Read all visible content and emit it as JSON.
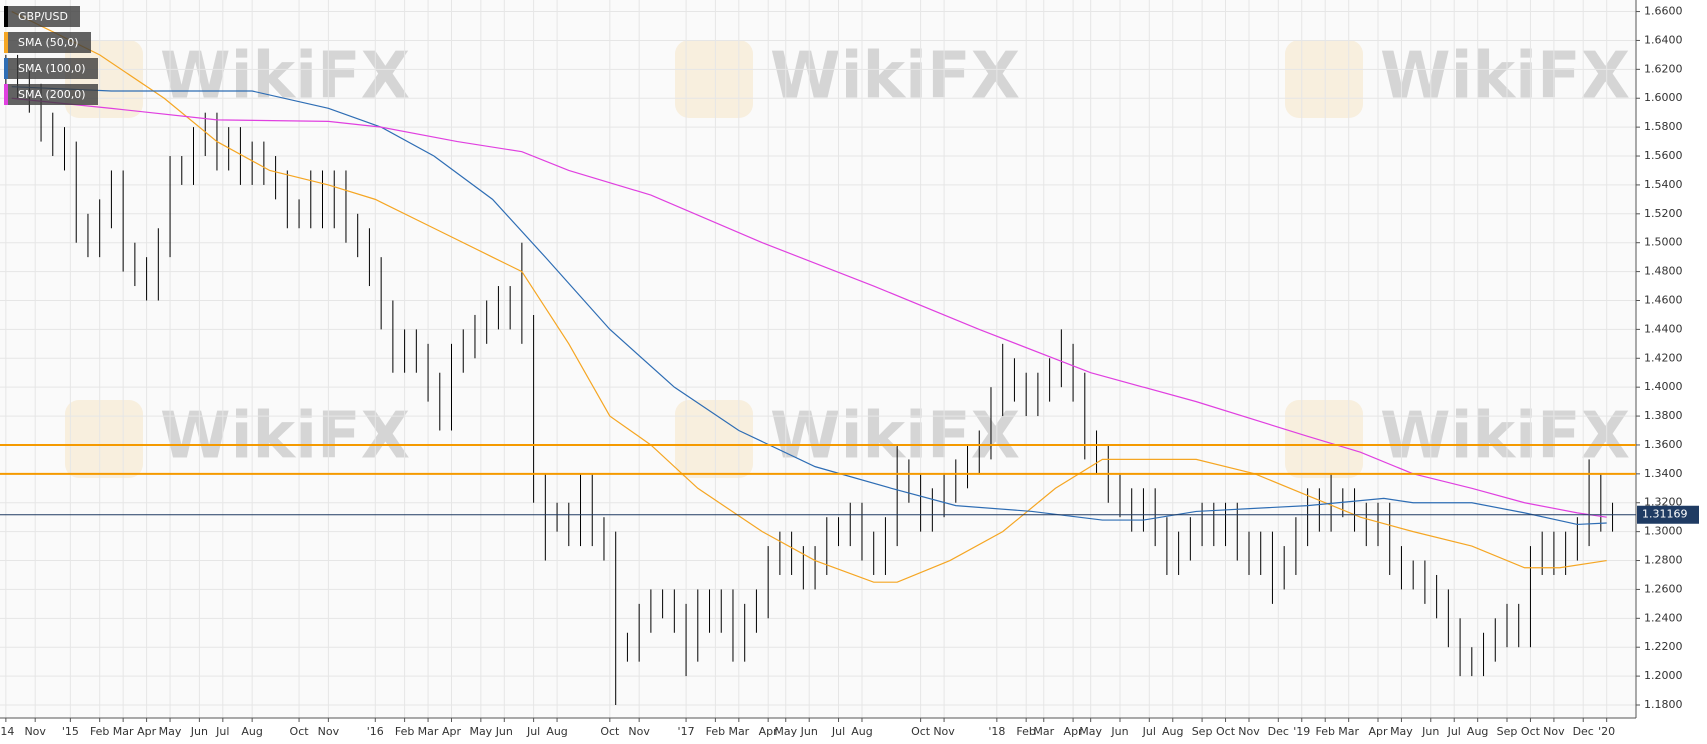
{
  "chart_data": {
    "type": "candlestick",
    "watermark": "WikiFX",
    "xlim": [
      0,
      279
    ],
    "ylim": [
      1.171,
      1.668
    ],
    "grid": true,
    "legend": "top-left",
    "yticks": [
      {
        "value": 1.18,
        "label": "1.1800"
      },
      {
        "value": 1.2,
        "label": "1.2000"
      },
      {
        "value": 1.22,
        "label": "1.2200"
      },
      {
        "value": 1.24,
        "label": "1.2400"
      },
      {
        "value": 1.26,
        "label": "1.2600"
      },
      {
        "value": 1.28,
        "label": "1.2800"
      },
      {
        "value": 1.3,
        "label": "1.3000"
      },
      {
        "value": 1.32,
        "label": "1.3200"
      },
      {
        "value": 1.34,
        "label": "1.3400"
      },
      {
        "value": 1.36,
        "label": "1.3600"
      },
      {
        "value": 1.38,
        "label": "1.3800"
      },
      {
        "value": 1.4,
        "label": "1.4000"
      },
      {
        "value": 1.42,
        "label": "1.4200"
      },
      {
        "value": 1.44,
        "label": "1.4400"
      },
      {
        "value": 1.46,
        "label": "1.4600"
      },
      {
        "value": 1.48,
        "label": "1.4800"
      },
      {
        "value": 1.5,
        "label": "1.5000"
      },
      {
        "value": 1.52,
        "label": "1.5200"
      },
      {
        "value": 1.54,
        "label": "1.5400"
      },
      {
        "value": 1.56,
        "label": "1.5600"
      },
      {
        "value": 1.58,
        "label": "1.5800"
      },
      {
        "value": 1.6,
        "label": "1.6000"
      },
      {
        "value": 1.62,
        "label": "1.6200"
      },
      {
        "value": 1.64,
        "label": "1.6400"
      },
      {
        "value": 1.66,
        "label": "1.6600"
      }
    ],
    "xticks": [
      {
        "value": 1,
        "label": "'14"
      },
      {
        "value": 6,
        "label": "Nov"
      },
      {
        "value": 12,
        "label": "'15"
      },
      {
        "value": 17,
        "label": "Feb"
      },
      {
        "value": 21,
        "label": "Mar"
      },
      {
        "value": 25,
        "label": "Apr"
      },
      {
        "value": 29,
        "label": "May"
      },
      {
        "value": 34,
        "label": "Jun"
      },
      {
        "value": 38,
        "label": "Jul"
      },
      {
        "value": 43,
        "label": "Aug"
      },
      {
        "value": 51,
        "label": "Oct"
      },
      {
        "value": 56,
        "label": "Nov"
      },
      {
        "value": 64,
        "label": "'16"
      },
      {
        "value": 69,
        "label": "Feb"
      },
      {
        "value": 73,
        "label": "Mar"
      },
      {
        "value": 77,
        "label": "Apr"
      },
      {
        "value": 82,
        "label": "May"
      },
      {
        "value": 86,
        "label": "Jun"
      },
      {
        "value": 91,
        "label": "Jul"
      },
      {
        "value": 95,
        "label": "Aug"
      },
      {
        "value": 104,
        "label": "Oct"
      },
      {
        "value": 109,
        "label": "Nov"
      },
      {
        "value": 117,
        "label": "'17"
      },
      {
        "value": 122,
        "label": "Feb"
      },
      {
        "value": 126,
        "label": "Mar"
      },
      {
        "value": 131,
        "label": "Apr"
      },
      {
        "value": 134,
        "label": "May"
      },
      {
        "value": 138,
        "label": "Jun"
      },
      {
        "value": 143,
        "label": "Jul"
      },
      {
        "value": 147,
        "label": "Aug"
      },
      {
        "value": 157,
        "label": "Oct"
      },
      {
        "value": 161,
        "label": "Nov"
      },
      {
        "value": 170,
        "label": "'18"
      },
      {
        "value": 175,
        "label": "Feb"
      },
      {
        "value": 178,
        "label": "Mar"
      },
      {
        "value": 183,
        "label": "Apr"
      },
      {
        "value": 186,
        "label": "May"
      },
      {
        "value": 191,
        "label": "Jun"
      },
      {
        "value": 196,
        "label": "Jul"
      },
      {
        "value": 200,
        "label": "Aug"
      },
      {
        "value": 205,
        "label": "Sep"
      },
      {
        "value": 209,
        "label": "Oct"
      },
      {
        "value": 213,
        "label": "Nov"
      },
      {
        "value": 218,
        "label": "Dec"
      },
      {
        "value": 222,
        "label": "'19"
      },
      {
        "value": 226,
        "label": "Feb"
      },
      {
        "value": 230,
        "label": "Mar"
      },
      {
        "value": 235,
        "label": "Apr"
      },
      {
        "value": 239,
        "label": "May"
      },
      {
        "value": 244,
        "label": "Jun"
      },
      {
        "value": 248,
        "label": "Jul"
      },
      {
        "value": 252,
        "label": "Aug"
      },
      {
        "value": 257,
        "label": "Sep"
      },
      {
        "value": 261,
        "label": "Oct"
      },
      {
        "value": 265,
        "label": "Nov"
      },
      {
        "value": 270,
        "label": "Dec"
      },
      {
        "value": 274,
        "label": "'20"
      }
    ],
    "hlines": [
      {
        "value": 1.36,
        "color": "#f59a00"
      },
      {
        "value": 1.34,
        "color": "#f59a00"
      }
    ],
    "last_price": 1.31169,
    "last_price_color": "#1f3b63",
    "series": [
      {
        "name": "GBP/USD",
        "type": "candlestick",
        "color": "#000000",
        "x": [
          1,
          3,
          5,
          7,
          9,
          11,
          13,
          15,
          17,
          19,
          21,
          23,
          25,
          27,
          29,
          31,
          33,
          35,
          37,
          39,
          41,
          43,
          45,
          47,
          49,
          51,
          53,
          55,
          57,
          59,
          61,
          63,
          65,
          67,
          69,
          71,
          73,
          75,
          77,
          79,
          81,
          83,
          85,
          87,
          89,
          91,
          93,
          95,
          97,
          99,
          101,
          103,
          105,
          107,
          109,
          111,
          113,
          115,
          117,
          119,
          121,
          123,
          125,
          127,
          129,
          131,
          133,
          135,
          137,
          139,
          141,
          143,
          145,
          147,
          149,
          151,
          153,
          155,
          157,
          159,
          161,
          163,
          165,
          167,
          169,
          171,
          173,
          175,
          177,
          179,
          181,
          183,
          185,
          187,
          189,
          191,
          193,
          195,
          197,
          199,
          201,
          203,
          205,
          207,
          209,
          211,
          213,
          215,
          217,
          219,
          221,
          223,
          225,
          227,
          229,
          231,
          233,
          235,
          237,
          239,
          241,
          243,
          245,
          247,
          249,
          251,
          253,
          255,
          257,
          259,
          261,
          263,
          265,
          267,
          269,
          271,
          273,
          275
        ],
        "open": [
          1.615,
          1.62,
          1.61,
          1.6,
          1.58,
          1.57,
          1.56,
          1.51,
          1.5,
          1.52,
          1.54,
          1.49,
          1.48,
          1.47,
          1.5,
          1.55,
          1.55,
          1.57,
          1.58,
          1.56,
          1.57,
          1.55,
          1.56,
          1.55,
          1.54,
          1.52,
          1.52,
          1.54,
          1.52,
          1.54,
          1.51,
          1.5,
          1.48,
          1.45,
          1.42,
          1.43,
          1.42,
          1.4,
          1.38,
          1.42,
          1.43,
          1.44,
          1.45,
          1.46,
          1.45,
          1.44,
          1.33,
          1.31,
          1.31,
          1.3,
          1.33,
          1.3,
          1.29,
          1.22,
          1.22,
          1.24,
          1.25,
          1.25,
          1.24,
          1.22,
          1.25,
          1.24,
          1.25,
          1.22,
          1.24,
          1.25,
          1.28,
          1.29,
          1.28,
          1.27,
          1.28,
          1.3,
          1.3,
          1.31,
          1.29,
          1.28,
          1.3,
          1.34,
          1.33,
          1.31,
          1.32,
          1.33,
          1.34,
          1.35,
          1.36,
          1.39,
          1.41,
          1.4,
          1.39,
          1.4,
          1.41,
          1.42,
          1.4,
          1.36,
          1.35,
          1.33,
          1.32,
          1.31,
          1.32,
          1.3,
          1.28,
          1.29,
          1.3,
          1.31,
          1.3,
          1.31,
          1.29,
          1.28,
          1.29,
          1.27,
          1.28,
          1.3,
          1.32,
          1.31,
          1.32,
          1.32,
          1.31,
          1.3,
          1.31,
          1.28,
          1.27,
          1.27,
          1.26,
          1.25,
          1.23,
          1.21,
          1.21,
          1.22,
          1.23,
          1.24,
          1.23,
          1.28,
          1.29,
          1.28,
          1.29,
          1.3,
          1.33,
          1.31
        ],
        "high": [
          1.63,
          1.63,
          1.62,
          1.61,
          1.59,
          1.58,
          1.57,
          1.52,
          1.53,
          1.55,
          1.55,
          1.5,
          1.49,
          1.51,
          1.56,
          1.56,
          1.58,
          1.59,
          1.59,
          1.58,
          1.58,
          1.57,
          1.57,
          1.56,
          1.55,
          1.53,
          1.55,
          1.55,
          1.55,
          1.55,
          1.52,
          1.51,
          1.49,
          1.46,
          1.44,
          1.44,
          1.43,
          1.41,
          1.43,
          1.44,
          1.45,
          1.46,
          1.47,
          1.47,
          1.5,
          1.45,
          1.34,
          1.32,
          1.32,
          1.34,
          1.34,
          1.31,
          1.3,
          1.23,
          1.25,
          1.26,
          1.26,
          1.26,
          1.25,
          1.26,
          1.26,
          1.26,
          1.26,
          1.25,
          1.26,
          1.29,
          1.3,
          1.3,
          1.29,
          1.29,
          1.31,
          1.31,
          1.32,
          1.32,
          1.3,
          1.31,
          1.36,
          1.35,
          1.34,
          1.33,
          1.34,
          1.35,
          1.36,
          1.37,
          1.4,
          1.43,
          1.42,
          1.41,
          1.41,
          1.42,
          1.44,
          1.43,
          1.41,
          1.37,
          1.36,
          1.34,
          1.33,
          1.33,
          1.33,
          1.31,
          1.3,
          1.31,
          1.32,
          1.32,
          1.32,
          1.32,
          1.3,
          1.3,
          1.3,
          1.29,
          1.31,
          1.33,
          1.33,
          1.34,
          1.33,
          1.33,
          1.32,
          1.32,
          1.32,
          1.29,
          1.28,
          1.28,
          1.27,
          1.26,
          1.24,
          1.22,
          1.23,
          1.24,
          1.25,
          1.25,
          1.29,
          1.3,
          1.3,
          1.3,
          1.31,
          1.35,
          1.34,
          1.32
        ],
        "low": [
          1.605,
          1.6,
          1.59,
          1.57,
          1.56,
          1.55,
          1.5,
          1.49,
          1.49,
          1.51,
          1.48,
          1.47,
          1.46,
          1.46,
          1.49,
          1.54,
          1.54,
          1.56,
          1.55,
          1.55,
          1.54,
          1.54,
          1.54,
          1.53,
          1.51,
          1.51,
          1.51,
          1.51,
          1.51,
          1.5,
          1.49,
          1.47,
          1.44,
          1.41,
          1.41,
          1.41,
          1.39,
          1.37,
          1.37,
          1.41,
          1.42,
          1.43,
          1.44,
          1.44,
          1.43,
          1.32,
          1.28,
          1.3,
          1.29,
          1.29,
          1.29,
          1.28,
          1.18,
          1.21,
          1.21,
          1.23,
          1.24,
          1.23,
          1.2,
          1.21,
          1.23,
          1.23,
          1.21,
          1.21,
          1.23,
          1.24,
          1.27,
          1.27,
          1.26,
          1.26,
          1.27,
          1.29,
          1.29,
          1.28,
          1.27,
          1.27,
          1.29,
          1.32,
          1.3,
          1.3,
          1.31,
          1.32,
          1.33,
          1.34,
          1.35,
          1.38,
          1.39,
          1.38,
          1.38,
          1.39,
          1.4,
          1.39,
          1.35,
          1.34,
          1.32,
          1.31,
          1.3,
          1.3,
          1.29,
          1.27,
          1.27,
          1.28,
          1.29,
          1.29,
          1.29,
          1.28,
          1.27,
          1.27,
          1.25,
          1.26,
          1.27,
          1.29,
          1.3,
          1.3,
          1.31,
          1.3,
          1.29,
          1.29,
          1.27,
          1.26,
          1.26,
          1.25,
          1.24,
          1.22,
          1.2,
          1.2,
          1.2,
          1.21,
          1.22,
          1.22,
          1.22,
          1.27,
          1.27,
          1.27,
          1.28,
          1.29,
          1.3,
          1.3
        ]
      },
      {
        "name": "SMA (50,0)",
        "type": "line",
        "color": "#f5a623",
        "x": [
          2,
          17,
          28,
          37,
          46,
          56,
          64,
          74,
          84,
          89,
          97,
          104,
          111,
          119,
          130,
          139,
          149,
          153,
          162,
          171,
          180,
          188,
          195,
          204,
          214,
          223,
          232,
          241,
          251,
          260,
          266,
          274
        ],
        "values": [
          1.66,
          1.63,
          1.6,
          1.57,
          1.55,
          1.54,
          1.53,
          1.51,
          1.49,
          1.48,
          1.43,
          1.38,
          1.36,
          1.33,
          1.3,
          1.28,
          1.265,
          1.265,
          1.28,
          1.3,
          1.33,
          1.35,
          1.35,
          1.35,
          1.34,
          1.325,
          1.31,
          1.3,
          1.29,
          1.275,
          1.275,
          1.28
        ]
      },
      {
        "name": "SMA (100,0)",
        "type": "line",
        "color": "#2e6db4",
        "x": [
          2,
          19,
          43,
          56,
          65,
          74,
          84,
          93,
          104,
          115,
          126,
          139,
          152,
          163,
          176,
          188,
          195,
          204,
          223,
          236,
          241,
          251,
          260,
          269,
          274
        ],
        "values": [
          1.608,
          1.605,
          1.605,
          1.593,
          1.58,
          1.56,
          1.53,
          1.49,
          1.44,
          1.4,
          1.37,
          1.345,
          1.33,
          1.318,
          1.314,
          1.308,
          1.308,
          1.314,
          1.318,
          1.323,
          1.32,
          1.32,
          1.313,
          1.305,
          1.306
        ]
      },
      {
        "name": "SMA (200,0)",
        "type": "line",
        "color": "#e040e0",
        "x": [
          2,
          19,
          37,
          56,
          65,
          78,
          89,
          97,
          111,
          130,
          149,
          167,
          186,
          204,
          223,
          232,
          241,
          251,
          260,
          269,
          274
        ],
        "values": [
          1.6,
          1.593,
          1.585,
          1.584,
          1.58,
          1.57,
          1.563,
          1.55,
          1.533,
          1.5,
          1.47,
          1.44,
          1.41,
          1.39,
          1.366,
          1.355,
          1.34,
          1.33,
          1.32,
          1.313,
          1.31
        ]
      }
    ]
  }
}
